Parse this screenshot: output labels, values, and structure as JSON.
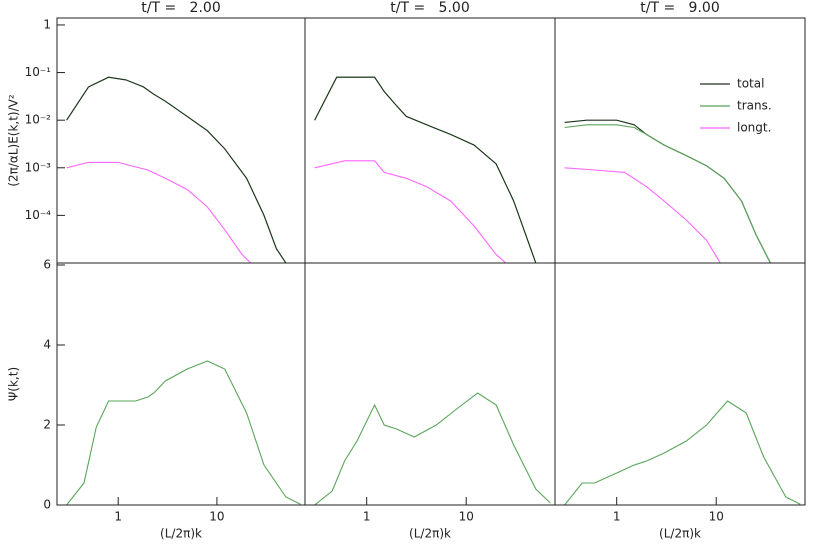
{
  "chart_data": [
    {
      "type": "line",
      "title": "t/T =   2.00",
      "y_label": "(2π/αL)E(k,t)/V²",
      "xscale": "log",
      "yscale": "log",
      "xlim": [
        0.24,
        78
      ],
      "ylim": [
        1e-05,
        1.4
      ],
      "yticks": [
        1,
        {
          "value": 0.1,
          "label": "10⁻¹"
        },
        {
          "value": 0.01,
          "label": "10⁻²"
        },
        {
          "value": 0.001,
          "label": "10⁻³"
        },
        {
          "value": 0.0001,
          "label": "10⁻⁴"
        }
      ],
      "series": [
        {
          "color": "#5aa55a",
          "x": [
            0.3,
            0.5,
            0.8,
            1.2,
            1.8,
            2.3,
            3,
            5,
            8,
            12,
            20,
            30,
            40,
            50
          ],
          "values": [
            0.01,
            0.05,
            0.08,
            0.07,
            0.05,
            0.035,
            0.025,
            0.012,
            0.006,
            0.0025,
            0.0006,
            0.0001,
            2e-05,
            1e-05
          ]
        },
        {
          "color": "#1e331e",
          "x": [
            0.3,
            0.5,
            0.8,
            1.2,
            1.8,
            2.3,
            3,
            5,
            8,
            12,
            20,
            30,
            40,
            50
          ],
          "values": [
            0.01,
            0.05,
            0.08,
            0.07,
            0.05,
            0.035,
            0.025,
            0.012,
            0.006,
            0.0025,
            0.0006,
            0.0001,
            2e-05,
            1e-05
          ]
        },
        {
          "color": "#ff66ff",
          "x": [
            0.3,
            0.5,
            1,
            2,
            3,
            5,
            8,
            12,
            18,
            22
          ],
          "values": [
            0.001,
            0.0013,
            0.0013,
            0.0009,
            0.0006,
            0.00035,
            0.00015,
            5e-05,
            1.5e-05,
            1e-05
          ]
        }
      ]
    },
    {
      "type": "line",
      "title": "t/T =   5.00",
      "xscale": "log",
      "yscale": "log",
      "xlim": [
        0.24,
        78
      ],
      "ylim": [
        1e-05,
        1.4
      ],
      "series": [
        {
          "color": "#5aa55a",
          "x": [
            0.3,
            0.5,
            0.8,
            1.2,
            1.5,
            2,
            2.5,
            4,
            7,
            12,
            20,
            30,
            50
          ],
          "values": [
            0.01,
            0.08,
            0.08,
            0.08,
            0.04,
            0.02,
            0.012,
            0.008,
            0.005,
            0.003,
            0.0012,
            0.0002,
            1e-05
          ]
        },
        {
          "color": "#1e331e",
          "x": [
            0.3,
            0.5,
            0.8,
            1.2,
            1.5,
            2,
            2.5,
            4,
            7,
            12,
            20,
            30,
            50
          ],
          "values": [
            0.01,
            0.08,
            0.08,
            0.08,
            0.04,
            0.02,
            0.012,
            0.008,
            0.005,
            0.003,
            0.0012,
            0.0002,
            1e-05
          ]
        },
        {
          "color": "#ff66ff",
          "x": [
            0.3,
            0.6,
            1.2,
            1.5,
            2.5,
            4,
            7,
            12,
            20,
            25
          ],
          "values": [
            0.001,
            0.0014,
            0.0014,
            0.0008,
            0.0006,
            0.0004,
            0.0002,
            6e-05,
            1.5e-05,
            1e-05
          ]
        }
      ]
    },
    {
      "type": "line",
      "title": "t/T =   9.00",
      "xscale": "log",
      "yscale": "log",
      "legend": true,
      "xlim": [
        0.24,
        78
      ],
      "ylim": [
        1e-05,
        1.4
      ],
      "series": [
        {
          "name": "total",
          "color": "#1e331e",
          "x": [
            0.3,
            0.5,
            1,
            1.5,
            2,
            3,
            5,
            8,
            12,
            18,
            25,
            35
          ],
          "values": [
            0.009,
            0.01,
            0.01,
            0.008,
            0.005,
            0.003,
            0.0018,
            0.0011,
            0.0006,
            0.0002,
            4e-05,
            1e-05
          ]
        },
        {
          "name": "trans.",
          "color": "#5aa55a",
          "x": [
            0.3,
            0.5,
            1,
            1.5,
            2,
            3,
            5,
            8,
            12,
            18,
            25,
            35
          ],
          "values": [
            0.007,
            0.008,
            0.008,
            0.007,
            0.005,
            0.003,
            0.0018,
            0.0011,
            0.0006,
            0.0002,
            4e-05,
            1e-05
          ]
        },
        {
          "name": "longt.",
          "color": "#ff66ff",
          "x": [
            0.3,
            0.6,
            1.2,
            2,
            3,
            5,
            8,
            11
          ],
          "values": [
            0.001,
            0.0009,
            0.0008,
            0.0004,
            0.0002,
            8e-05,
            3e-05,
            1e-05
          ]
        }
      ]
    },
    {
      "type": "line",
      "y_label": "Ψ(k,t)",
      "x_label": "(L/2π)k",
      "xscale": "log",
      "xlim": [
        0.24,
        78
      ],
      "ylim": [
        0,
        6.05
      ],
      "yticks": [
        0,
        2,
        4,
        6
      ],
      "xticks": [
        1,
        10
      ],
      "series": [
        {
          "color": "#5aa55a",
          "x": [
            0.3,
            0.45,
            0.6,
            0.8,
            1.5,
            2,
            2.3,
            3,
            5,
            8,
            12,
            20,
            30,
            50,
            70
          ],
          "values": [
            0,
            0.55,
            1.95,
            2.6,
            2.6,
            2.7,
            2.8,
            3.1,
            3.4,
            3.6,
            3.4,
            2.3,
            1.0,
            0.2,
            0.02
          ]
        }
      ]
    },
    {
      "type": "line",
      "x_label": "(L/2π)k",
      "xscale": "log",
      "xlim": [
        0.24,
        78
      ],
      "ylim": [
        0,
        6.05
      ],
      "xticks": [
        1,
        10
      ],
      "series": [
        {
          "color": "#5aa55a",
          "x": [
            0.3,
            0.45,
            0.6,
            0.8,
            1.2,
            1.5,
            2,
            3,
            5,
            8,
            13,
            20,
            30,
            50,
            70
          ],
          "values": [
            0,
            0.35,
            1.1,
            1.6,
            2.5,
            2.0,
            1.9,
            1.7,
            2.0,
            2.4,
            2.8,
            2.5,
            1.5,
            0.4,
            0.05
          ]
        }
      ]
    },
    {
      "type": "line",
      "x_label": "(L/2π)k",
      "xscale": "log",
      "xlim": [
        0.24,
        78
      ],
      "ylim": [
        0,
        6.05
      ],
      "xticks": [
        1,
        10
      ],
      "series": [
        {
          "color": "#5aa55a",
          "x": [
            0.3,
            0.45,
            0.6,
            1,
            1.5,
            2,
            3,
            5,
            8,
            13,
            20,
            30,
            50,
            70
          ],
          "values": [
            0,
            0.55,
            0.55,
            0.8,
            1.0,
            1.1,
            1.3,
            1.6,
            2.0,
            2.6,
            2.3,
            1.2,
            0.2,
            0.02
          ]
        }
      ]
    }
  ]
}
